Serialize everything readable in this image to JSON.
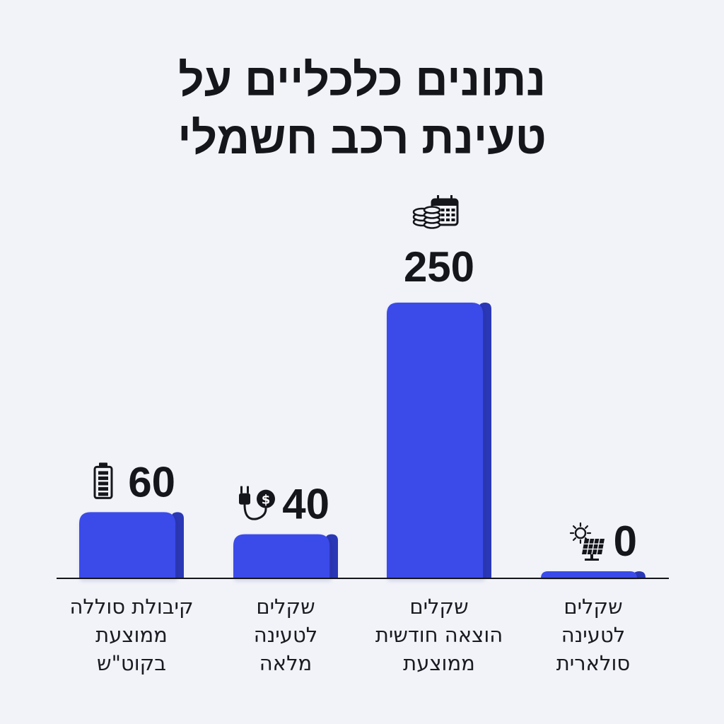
{
  "title": {
    "line1": "נתונים כלכליים על",
    "line2": "טעינת רכב חשמלי"
  },
  "colors": {
    "background": "#f1f3f8",
    "bar_front": "#3a4be9",
    "bar_side": "#2b38b6",
    "text": "#15151c",
    "axis": "#15151c"
  },
  "chart_data": {
    "type": "bar",
    "direction": "rtl",
    "categories": [
      [
        "קיבולת סוללה",
        "ממוצעת",
        "בקוט\"ש"
      ],
      [
        "שקלים",
        "לטעינה",
        "מלאה"
      ],
      [
        "שקלים",
        "הוצאה חודשית",
        "ממוצעת"
      ],
      [
        "שקלים",
        "לטעינה",
        "סולארית"
      ]
    ],
    "values": [
      60,
      40,
      250,
      0
    ],
    "value_labels": [
      "60",
      "40",
      "250",
      "0"
    ],
    "icons": [
      "battery-icon",
      "plug-dollar-icon",
      "coins-calendar-icon",
      "sun-solar-panel-icon"
    ],
    "grid": false,
    "legend": "none"
  }
}
